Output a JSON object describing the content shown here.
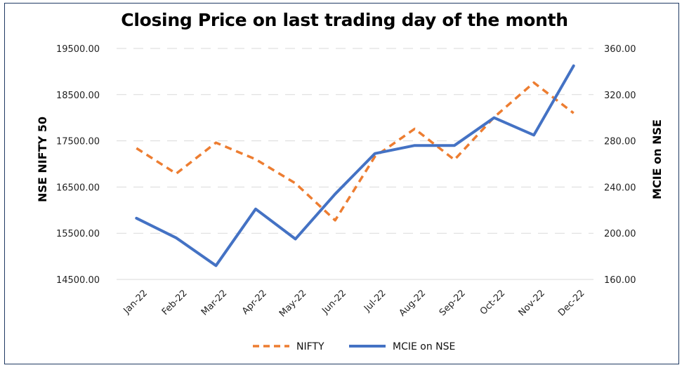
{
  "chart_data": {
    "type": "line",
    "title": "Closing Price on last trading day of the month",
    "categories": [
      "Jan-22",
      "Feb-22",
      "Mar-22",
      "Apr-22",
      "May-22",
      "Jun-22",
      "Jul-22",
      "Aug-22",
      "Sep-22",
      "Oct-22",
      "Nov-22",
      "Dec-22"
    ],
    "y_left": {
      "label": "NSE NIFTY 50",
      "ticks": [
        "19500.00",
        "18500.00",
        "17500.00",
        "16500.00",
        "15500.00",
        "14500.00"
      ],
      "range": [
        14500,
        19500
      ]
    },
    "y_right": {
      "label": "MCIE on NSE",
      "ticks": [
        "360.00",
        "320.00",
        "280.00",
        "240.00",
        "200.00",
        "160.00"
      ],
      "range": [
        160,
        360
      ]
    },
    "series": [
      {
        "name": "NIFTY",
        "axis": "left",
        "style": "dashed",
        "color": "#ed7d31",
        "values": [
          17340,
          16790,
          17460,
          17100,
          16580,
          15780,
          17160,
          17760,
          17090,
          18010,
          18760,
          18100
        ]
      },
      {
        "name": "MCIE on NSE",
        "axis": "right",
        "style": "solid",
        "color": "#4472c4",
        "values": [
          213,
          196,
          172,
          221,
          195,
          234,
          269,
          276,
          276,
          300,
          285,
          345
        ]
      }
    ],
    "legend_position": "bottom",
    "grid": "horizontal dashed"
  }
}
